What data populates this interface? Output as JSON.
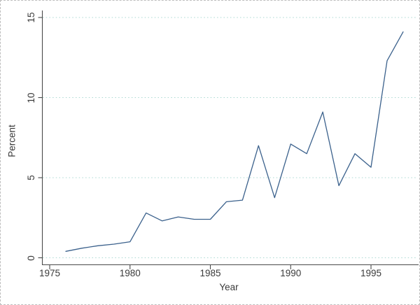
{
  "figure": {
    "xlabel": "Year",
    "ylabel": "Percent"
  },
  "chart_data": {
    "type": "line",
    "title": "",
    "xlabel": "Year",
    "ylabel": "Percent",
    "x": [
      1976,
      1977,
      1978,
      1979,
      1980,
      1981,
      1982,
      1983,
      1984,
      1985,
      1986,
      1987,
      1988,
      1989,
      1990,
      1991,
      1992,
      1993,
      1994,
      1995,
      1996,
      1997
    ],
    "values": [
      0.4,
      0.6,
      0.75,
      0.85,
      1.0,
      2.8,
      2.3,
      2.55,
      2.4,
      2.4,
      3.5,
      3.6,
      7.0,
      3.75,
      7.1,
      6.5,
      9.1,
      4.5,
      6.5,
      5.65,
      12.3,
      14.1
    ],
    "series_name": "Percent",
    "xticks": [
      1975,
      1980,
      1985,
      1990,
      1995
    ],
    "yticks": [
      0,
      5,
      10,
      15
    ],
    "xlim": [
      1974.5,
      1998
    ],
    "ylim": [
      -0.4,
      15.45
    ],
    "grid": "horizontal dotted at yticks",
    "legend": "none",
    "colors": {
      "line": "#3b618c",
      "grid": "#aad8d1",
      "axis": "#4a4a4a",
      "text": "#3a3a3a",
      "background": "#ffffff"
    }
  }
}
